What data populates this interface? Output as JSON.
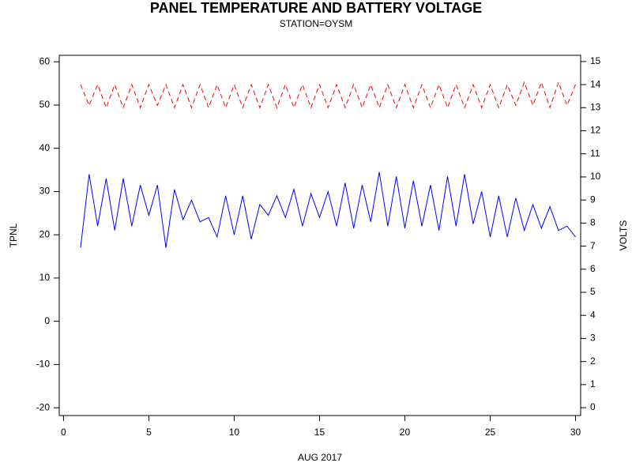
{
  "chart_data": {
    "type": "line",
    "title": "PANEL TEMPERATURE AND BATTERY VOLTAGE",
    "subtitle": "STATION=OYSM",
    "xlabel": "AUG 2017",
    "ylabel": "TPNL",
    "y2label": "VOLTS",
    "x": [
      1.0,
      1.5,
      2.0,
      2.5,
      3.0,
      3.5,
      4.0,
      4.5,
      5.0,
      5.5,
      6.0,
      6.5,
      7.0,
      7.5,
      8.0,
      8.5,
      9.0,
      9.5,
      10.0,
      10.5,
      11.0,
      11.5,
      12.0,
      12.5,
      13.0,
      13.5,
      14.0,
      14.5,
      15.0,
      15.5,
      16.0,
      16.5,
      17.0,
      17.5,
      18.0,
      18.5,
      19.0,
      19.5,
      20.0,
      20.5,
      21.0,
      21.5,
      22.0,
      22.5,
      23.0,
      23.5,
      24.0,
      24.5,
      25.0,
      25.5,
      26.0,
      26.5,
      27.0,
      27.5,
      28.0,
      28.5,
      29.0,
      29.5,
      30.0
    ],
    "series": [
      {
        "name": "TPNL",
        "color": "#0000ff",
        "dashed": false,
        "values": [
          17,
          34,
          22,
          33,
          21,
          33,
          22,
          31.5,
          24.5,
          31.5,
          17,
          30.5,
          23.5,
          28,
          23,
          24,
          19.5,
          29,
          20,
          29,
          19,
          27,
          24.5,
          29,
          24,
          30.5,
          22,
          29.5,
          24,
          30,
          22,
          32,
          21.5,
          31.5,
          23,
          34.5,
          22,
          33.5,
          21.5,
          32.5,
          22,
          31.5,
          21,
          33.5,
          22,
          34,
          22.5,
          30,
          19.5,
          29,
          19.5,
          28.5,
          21,
          27,
          21.5,
          26.5,
          21,
          22,
          19.5
        ]
      },
      {
        "name": "VOLTS",
        "color": "#ff0000",
        "dashed": true,
        "axis": "y2",
        "values": [
          14.0,
          13.1,
          14.0,
          13.0,
          14.0,
          13.0,
          14.0,
          13.0,
          14.0,
          13.1,
          14.0,
          13.0,
          14.0,
          13.0,
          14.0,
          13.0,
          14.0,
          13.0,
          14.0,
          13.0,
          14.0,
          13.0,
          14.0,
          13.0,
          14.0,
          13.0,
          14.0,
          13.0,
          14.0,
          13.0,
          14.0,
          13.0,
          14.0,
          13.0,
          14.0,
          13.0,
          14.0,
          13.0,
          14.0,
          13.0,
          14.0,
          13.0,
          14.0,
          13.0,
          14.0,
          13.0,
          14.0,
          13.0,
          14.0,
          13.0,
          14.0,
          13.1,
          14.1,
          13.1,
          14.1,
          13.0,
          14.1,
          13.1,
          14.0
        ]
      }
    ],
    "xlim": [
      -0.25,
      30.3
    ],
    "xticks": [
      0,
      5,
      10,
      15,
      20,
      25,
      30
    ],
    "ylim": [
      -21.8,
      61.5
    ],
    "yticks": [
      -20,
      -10,
      0,
      10,
      20,
      30,
      40,
      50,
      60
    ],
    "y2lim": [
      -0.34,
      15.27
    ],
    "y2ticks": [
      0,
      1,
      2,
      3,
      4,
      5,
      6,
      7,
      8,
      9,
      10,
      11,
      12,
      13,
      14,
      15
    ]
  }
}
